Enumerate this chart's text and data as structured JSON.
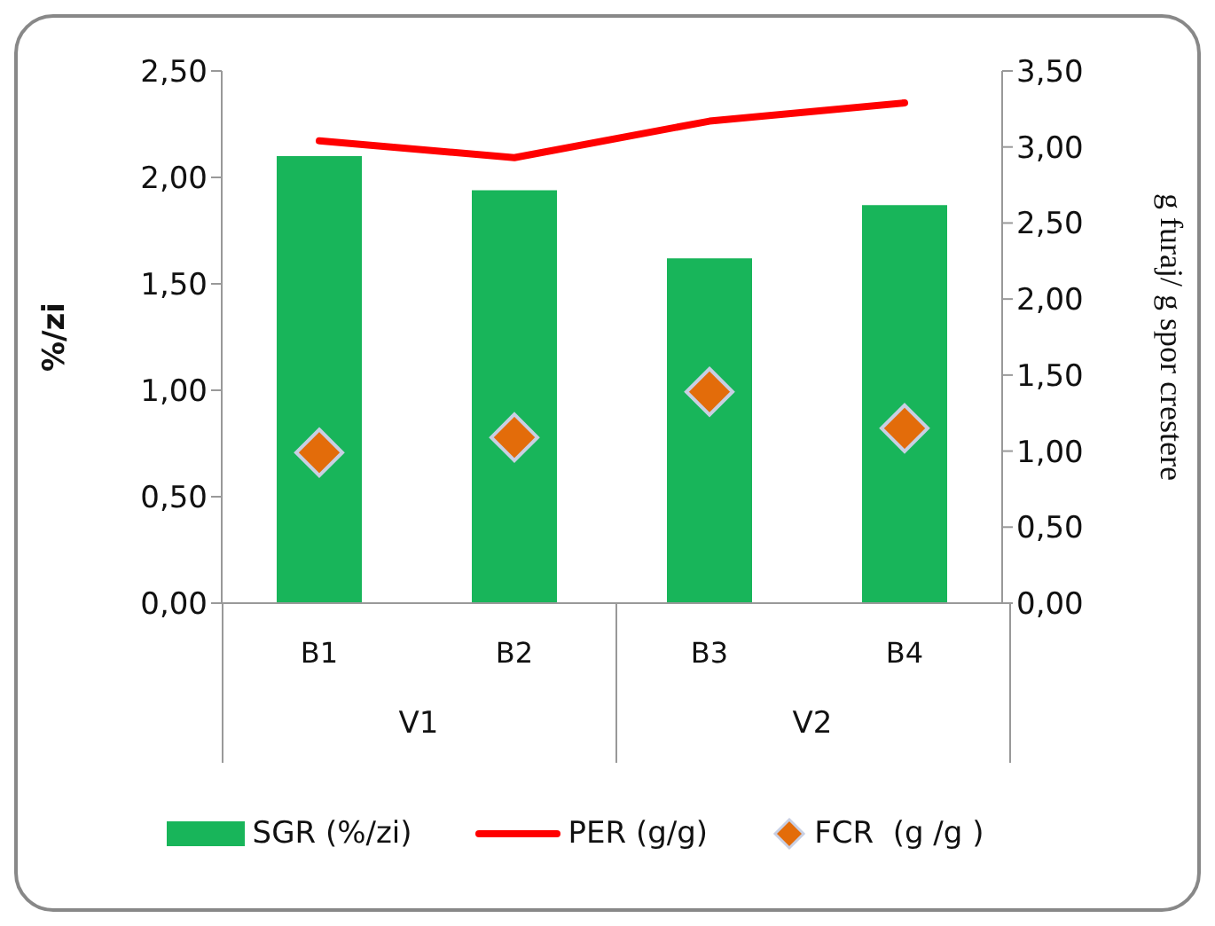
{
  "chart_data": {
    "type": "bar",
    "categories": [
      "B1",
      "B2",
      "B3",
      "B4"
    ],
    "series": [
      {
        "name": "SGR (%/zi)",
        "color": "#18b55a",
        "values": [
          2.1,
          1.94,
          1.62,
          1.87
        ]
      },
      {
        "name": "PER (g/g)",
        "type": "line",
        "axis": "y2",
        "color": "#ff0000",
        "values": [
          3.04,
          2.93,
          3.17,
          3.29
        ]
      },
      {
        "name": "FCR  (g /g )",
        "type": "scatter",
        "axis": "y2",
        "color": "#e36c0a",
        "marker": "diamond",
        "values": [
          0.99,
          1.09,
          1.39,
          1.15
        ]
      }
    ],
    "ylabel": "%/zi",
    "y2label": "g furaj/ g spor crestere",
    "ylim": [
      0,
      2.5
    ],
    "yticks": [
      {
        "value": 0,
        "label": "0,00"
      },
      {
        "value": 0.5,
        "label": "0,50"
      },
      {
        "value": 1,
        "label": "1,00"
      },
      {
        "value": 1.5,
        "label": "1,50"
      },
      {
        "value": 2,
        "label": "2,00"
      },
      {
        "value": 2.5,
        "label": "2,50"
      }
    ],
    "y2lim": [
      0,
      3.5
    ],
    "y2ticks": [
      {
        "value": 0,
        "label": "0,00"
      },
      {
        "value": 0.5,
        "label": "0,50"
      },
      {
        "value": 1,
        "label": "1,00"
      },
      {
        "value": 1.5,
        "label": "1,50"
      },
      {
        "value": 2,
        "label": "2,00"
      },
      {
        "value": 2.5,
        "label": "2,50"
      },
      {
        "value": 3,
        "label": "3,00"
      },
      {
        "value": 3.5,
        "label": "3,50"
      }
    ],
    "annotations": [
      "V1",
      "V2"
    ],
    "grid": false,
    "legend": "bottom"
  }
}
